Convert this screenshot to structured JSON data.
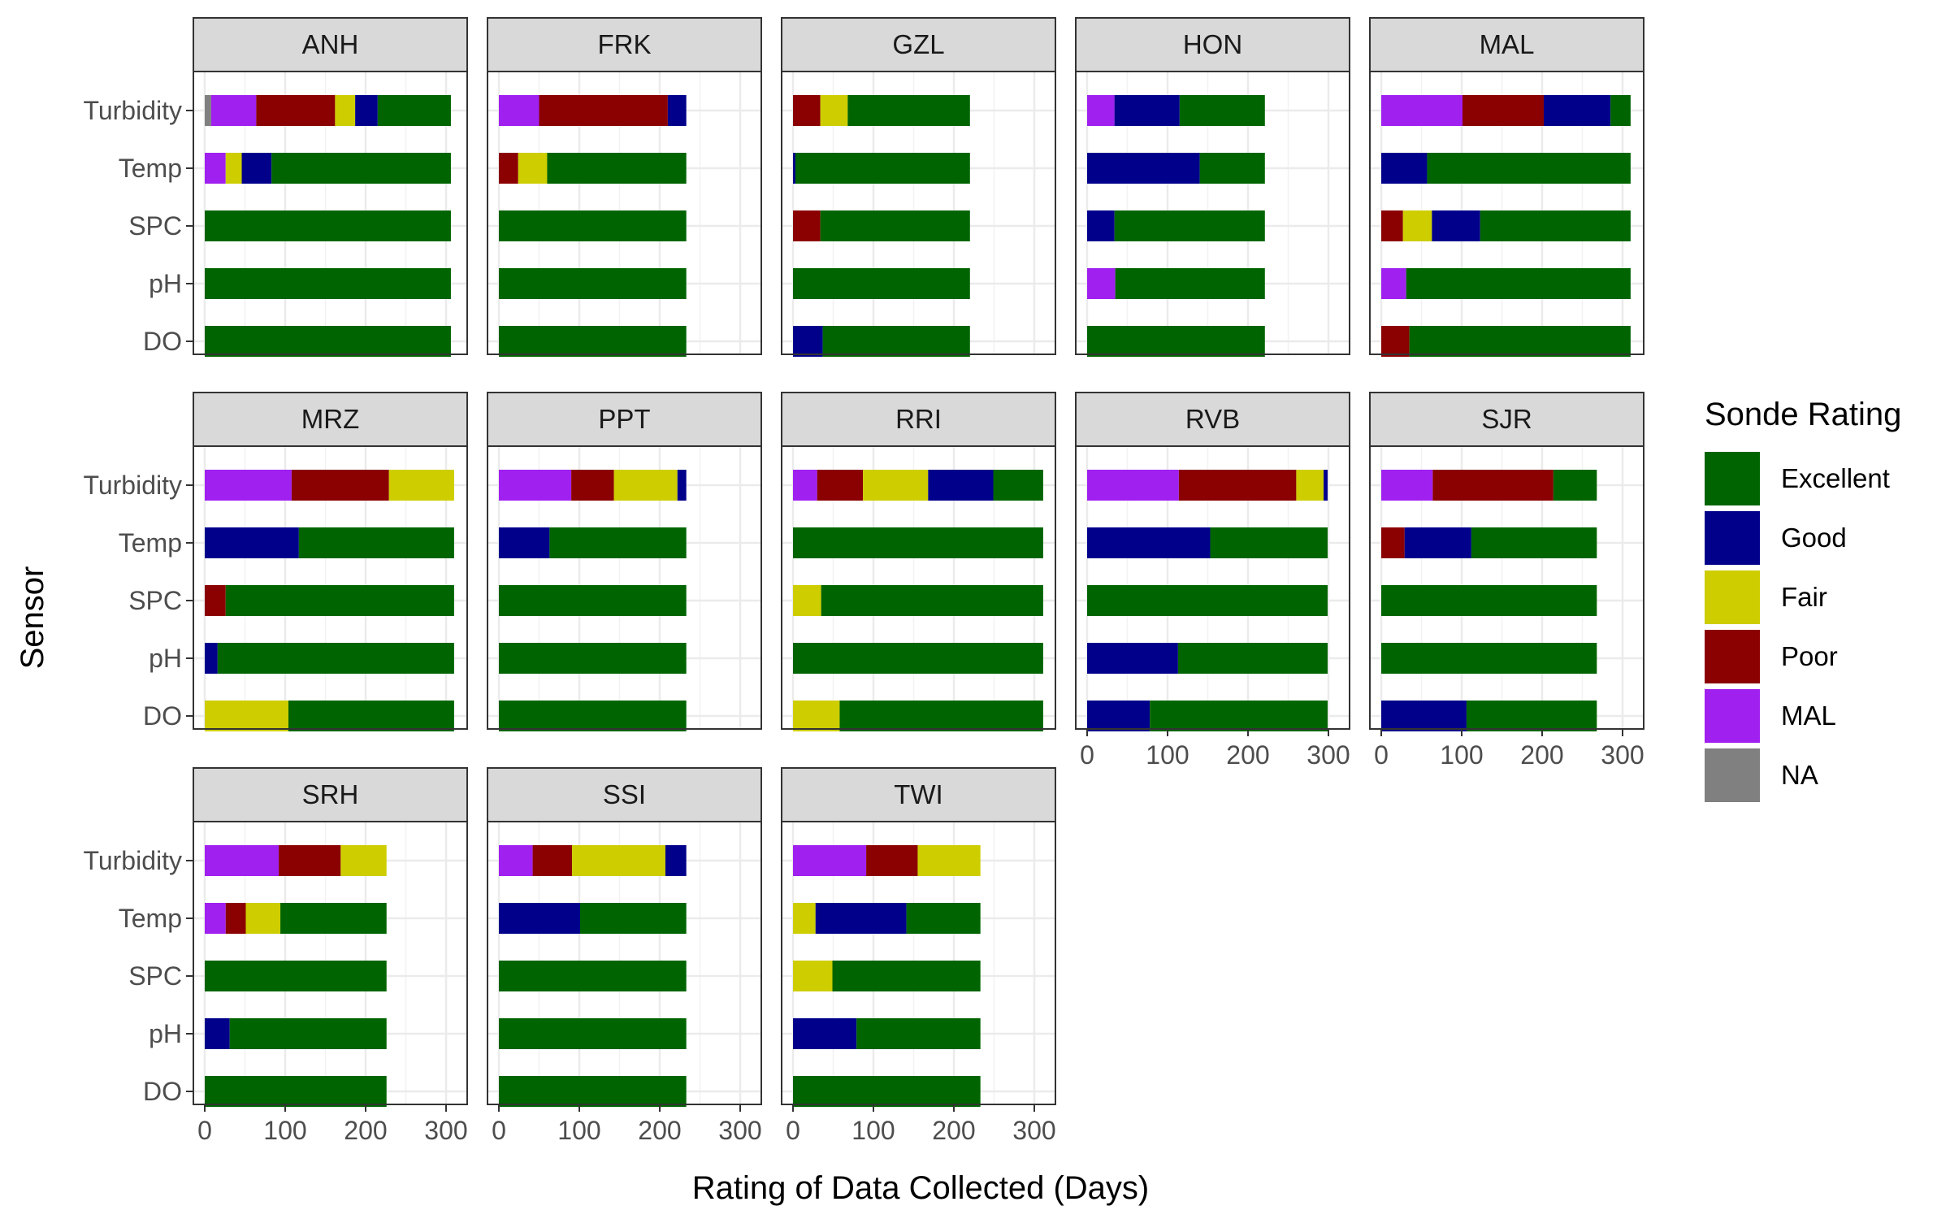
{
  "chart_data": {
    "type": "bar",
    "orientation": "horizontal",
    "stacked": true,
    "xlabel": "Rating of Data Collected (Days)",
    "ylabel": "Sensor",
    "xlim": [
      0,
      315
    ],
    "x_ticks": [
      0,
      100,
      200,
      300
    ],
    "sensors": [
      "Turbidity",
      "Temp",
      "SPC",
      "pH",
      "DO"
    ],
    "grid": true,
    "legend": {
      "title": "Sonde Rating",
      "placement": "right",
      "items": [
        {
          "label": "Excellent",
          "color": "#006400"
        },
        {
          "label": "Good",
          "color": "#00008B"
        },
        {
          "label": "Fair",
          "color": "#CDCD00"
        },
        {
          "label": "Poor",
          "color": "#8B0000"
        },
        {
          "label": "MAL",
          "color": "#A020F0"
        },
        {
          "label": "NA",
          "color": "#808080"
        }
      ]
    },
    "stack_order": [
      "NA",
      "MAL",
      "Poor",
      "Fair",
      "Good",
      "Excellent"
    ],
    "panels": [
      {
        "station": "ANH",
        "bars": {
          "Turbidity": {
            "NA": 8,
            "MAL": 56,
            "Poor": 98,
            "Fair": 25,
            "Good": 28,
            "Excellent": 91
          },
          "Temp": {
            "MAL": 26,
            "Fair": 20,
            "Good": 37,
            "Excellent": 223
          },
          "SPC": {
            "Excellent": 306
          },
          "pH": {
            "Excellent": 306
          },
          "DO": {
            "Excellent": 306
          }
        }
      },
      {
        "station": "FRK",
        "bars": {
          "Turbidity": {
            "MAL": 50,
            "Poor": 160,
            "Good": 23
          },
          "Temp": {
            "Poor": 24,
            "Fair": 36,
            "Excellent": 173
          },
          "SPC": {
            "Excellent": 233
          },
          "pH": {
            "Excellent": 233
          },
          "DO": {
            "Excellent": 233
          }
        }
      },
      {
        "station": "GZL",
        "bars": {
          "Turbidity": {
            "Poor": 34,
            "Fair": 34,
            "Excellent": 152
          },
          "Temp": {
            "Good": 3,
            "Excellent": 217
          },
          "SPC": {
            "Poor": 34,
            "Excellent": 186
          },
          "pH": {
            "Excellent": 220
          },
          "DO": {
            "Good": 37,
            "Excellent": 183
          }
        }
      },
      {
        "station": "HON",
        "bars": {
          "Turbidity": {
            "MAL": 34,
            "Good": 81,
            "Excellent": 106
          },
          "Temp": {
            "Good": 140,
            "Excellent": 81
          },
          "SPC": {
            "Good": 34,
            "Excellent": 187
          },
          "pH": {
            "MAL": 35,
            "Excellent": 186
          },
          "DO": {
            "Excellent": 221
          }
        }
      },
      {
        "station": "MAL",
        "bars": {
          "Turbidity": {
            "MAL": 101,
            "Poor": 101,
            "Good": 83,
            "Excellent": 25
          },
          "Temp": {
            "Good": 57,
            "Excellent": 253
          },
          "SPC": {
            "Poor": 27,
            "Fair": 36,
            "Good": 60,
            "Excellent": 187
          },
          "pH": {
            "MAL": 31,
            "Excellent": 279
          },
          "DO": {
            "Poor": 35,
            "Excellent": 275
          }
        }
      },
      {
        "station": "MRZ",
        "bars": {
          "Turbidity": {
            "MAL": 108,
            "Poor": 121,
            "Fair": 81
          },
          "Temp": {
            "Good": 117,
            "Excellent": 193
          },
          "SPC": {
            "Poor": 26,
            "Excellent": 284
          },
          "pH": {
            "Good": 16,
            "Excellent": 294
          },
          "DO": {
            "Fair": 104,
            "Excellent": 206
          }
        }
      },
      {
        "station": "PPT",
        "bars": {
          "Turbidity": {
            "MAL": 90,
            "Poor": 53,
            "Fair": 79,
            "Good": 11
          },
          "Temp": {
            "Good": 63,
            "Excellent": 170
          },
          "SPC": {
            "Excellent": 233
          },
          "pH": {
            "Excellent": 233
          },
          "DO": {
            "Excellent": 233
          }
        }
      },
      {
        "station": "RRI",
        "bars": {
          "Turbidity": {
            "MAL": 30,
            "Poor": 57,
            "Fair": 81,
            "Good": 81,
            "Excellent": 62
          },
          "Temp": {
            "Excellent": 311
          },
          "SPC": {
            "Fair": 35,
            "Excellent": 276
          },
          "pH": {
            "Excellent": 311
          },
          "DO": {
            "Fair": 58,
            "Excellent": 253
          }
        }
      },
      {
        "station": "RVB",
        "bars": {
          "Turbidity": {
            "MAL": 114,
            "Poor": 146,
            "Fair": 34,
            "Good": 5
          },
          "Temp": {
            "Good": 153,
            "Excellent": 146
          },
          "SPC": {
            "Excellent": 299
          },
          "pH": {
            "Good": 113,
            "Excellent": 186
          },
          "DO": {
            "Good": 78,
            "Excellent": 221
          }
        }
      },
      {
        "station": "SJR",
        "bars": {
          "Turbidity": {
            "MAL": 64,
            "Poor": 150,
            "Excellent": 54
          },
          "Temp": {
            "Poor": 29,
            "Good": 83,
            "Excellent": 156
          },
          "SPC": {
            "Excellent": 268
          },
          "pH": {
            "Excellent": 268
          },
          "DO": {
            "Good": 106,
            "Excellent": 162
          }
        }
      },
      {
        "station": "SRH",
        "bars": {
          "Turbidity": {
            "MAL": 92,
            "Poor": 77,
            "Fair": 57
          },
          "Temp": {
            "MAL": 26,
            "Poor": 25,
            "Fair": 43,
            "Excellent": 132
          },
          "SPC": {
            "Excellent": 226
          },
          "pH": {
            "Good": 31,
            "Excellent": 195
          },
          "DO": {
            "Excellent": 226
          }
        }
      },
      {
        "station": "SSI",
        "bars": {
          "Turbidity": {
            "MAL": 42,
            "Poor": 49,
            "Fair": 116,
            "Good": 26
          },
          "Temp": {
            "Good": 101,
            "Excellent": 132
          },
          "SPC": {
            "Excellent": 233
          },
          "pH": {
            "Excellent": 233
          },
          "DO": {
            "Excellent": 233
          }
        }
      },
      {
        "station": "TWI",
        "bars": {
          "Turbidity": {
            "MAL": 91,
            "Poor": 64,
            "Fair": 78
          },
          "Temp": {
            "Fair": 28,
            "Good": 113,
            "Excellent": 92
          },
          "SPC": {
            "Fair": 49,
            "Excellent": 184
          },
          "pH": {
            "Good": 79,
            "Excellent": 154
          },
          "DO": {
            "Excellent": 233
          }
        }
      }
    ]
  }
}
